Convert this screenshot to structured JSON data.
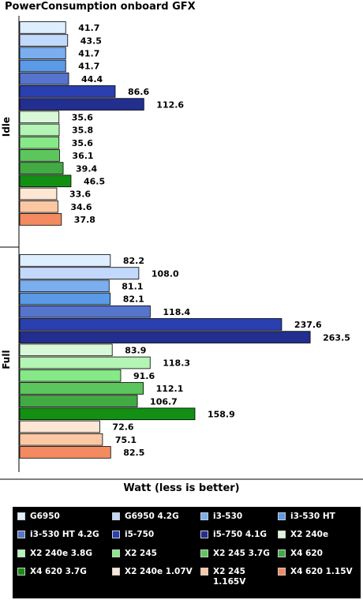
{
  "chart_data": {
    "type": "bar",
    "orientation": "horizontal",
    "title": "PowerConsumption onboard GFX",
    "xlabel": "Watt (less is better)",
    "groups": [
      "Idle",
      "Full"
    ],
    "series": [
      {
        "name": "G6950",
        "color": "#ddeeff",
        "values": [
          41.7,
          82.2
        ]
      },
      {
        "name": "G6950 4.2G",
        "color": "#c2d8fc",
        "values": [
          43.5,
          108.0
        ]
      },
      {
        "name": "i3-530",
        "color": "#7aaeee",
        "values": [
          41.7,
          81.1
        ]
      },
      {
        "name": "i3-530 HT",
        "color": "#5a9ae6",
        "values": [
          41.7,
          82.1
        ]
      },
      {
        "name": "i3-530 HT 4.2G",
        "color": "#5574cc",
        "values": [
          44.4,
          118.4
        ]
      },
      {
        "name": "i5-750",
        "color": "#2a3fb0",
        "values": [
          86.6,
          237.6
        ]
      },
      {
        "name": "i5-750 4.1G",
        "color": "#232f8e",
        "values": [
          112.6,
          263.5
        ]
      },
      {
        "name": "X2 240e",
        "color": "#d8f8d8",
        "values": [
          35.6,
          83.9
        ]
      },
      {
        "name": "X2 240e 3.8G",
        "color": "#b4f4b4",
        "values": [
          35.8,
          118.3
        ]
      },
      {
        "name": "X2 245",
        "color": "#86e886",
        "values": [
          35.6,
          91.6
        ]
      },
      {
        "name": "X2 245 3.7G",
        "color": "#5cc65c",
        "values": [
          36.1,
          112.1
        ]
      },
      {
        "name": "X4 620",
        "color": "#42aa42",
        "values": [
          39.4,
          106.7
        ]
      },
      {
        "name": "X4 620 3.7G",
        "color": "#139013",
        "values": [
          46.5,
          158.9
        ]
      },
      {
        "name": "X2 240e 1.07V",
        "color": "#fde6d4",
        "values": [
          33.6,
          72.6
        ]
      },
      {
        "name": "X2 245 1.165V",
        "color": "#fcc8a4",
        "values": [
          34.6,
          75.1
        ]
      },
      {
        "name": "X4 620 1.15V",
        "color": "#f48a60",
        "values": [
          37.8,
          82.5
        ]
      }
    ],
    "value_format": "one-decimal",
    "grid": false,
    "legend_position": "bottom"
  }
}
